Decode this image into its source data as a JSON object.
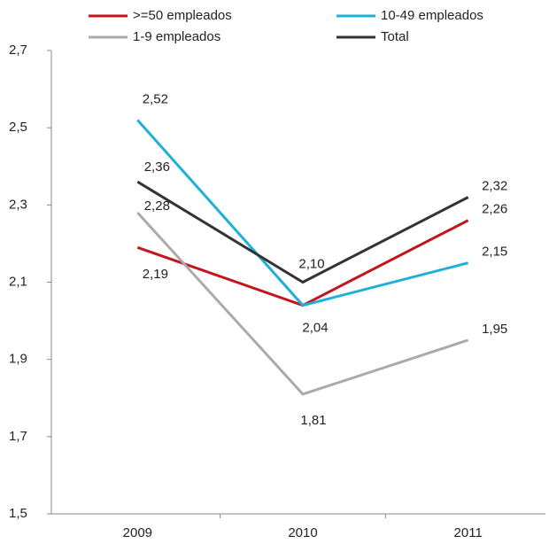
{
  "chart_data": {
    "type": "line",
    "categories": [
      "2009",
      "2010",
      "2011"
    ],
    "series": [
      {
        "name": ">=50 empleados",
        "color": "#c0161c",
        "values": [
          2.19,
          2.04,
          2.26
        ],
        "value_labels": [
          "2,19",
          "2,04",
          "2,26"
        ]
      },
      {
        "name": "10-49 empleados",
        "color": "#1fb0d6",
        "values": [
          2.52,
          2.04,
          2.15
        ],
        "value_labels": [
          "2,52",
          null,
          "2,15"
        ]
      },
      {
        "name": "1-9 empleados",
        "color": "#aaaaaa",
        "values": [
          2.28,
          1.81,
          1.95
        ],
        "value_labels": [
          "2,28",
          "1,81",
          "1,95"
        ]
      },
      {
        "name": "Total",
        "color": "#333333",
        "values": [
          2.36,
          2.1,
          2.32
        ],
        "value_labels": [
          "2,36",
          "2,10",
          "2,32"
        ]
      }
    ],
    "ylim": [
      1.5,
      2.7
    ],
    "yticks": [
      {
        "value": 1.5,
        "label": "1,5"
      },
      {
        "value": 1.7,
        "label": "1,7"
      },
      {
        "value": 1.9,
        "label": "1,9"
      },
      {
        "value": 2.1,
        "label": "2,1"
      },
      {
        "value": 2.3,
        "label": "2,3"
      },
      {
        "value": 2.5,
        "label": "2,5"
      },
      {
        "value": 2.7,
        "label": "2,7"
      }
    ],
    "grid": false,
    "legend": "top"
  }
}
